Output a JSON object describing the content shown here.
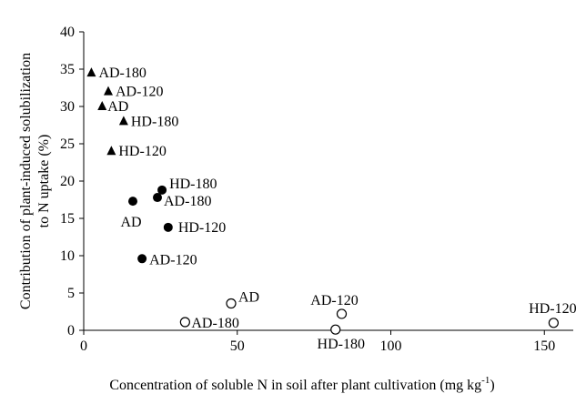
{
  "chart_data": {
    "type": "scatter",
    "title": "",
    "xlabel": "Concentration of soluble N in soil after plant cultivation (mg kg",
    "xlabel_sup": "-1",
    "xlabel_end": ")",
    "ylabel_lines": [
      "Contribution of plant-induced solubilization",
      "to N uptake (%)"
    ],
    "xlim": [
      0,
      160
    ],
    "ylim": [
      0,
      40
    ],
    "xticks": [
      0,
      50,
      100,
      150
    ],
    "yticks": [
      0,
      5,
      10,
      15,
      20,
      25,
      30,
      35,
      40
    ],
    "grid": false,
    "series": [
      {
        "marker": "triangle",
        "points": [
          {
            "x": 2.5,
            "y": 34.5,
            "label": "AD-180"
          },
          {
            "x": 8,
            "y": 32,
            "label": "AD-120"
          },
          {
            "x": 6,
            "y": 30,
            "label": "AD"
          },
          {
            "x": 13,
            "y": 28,
            "label": "HD-180"
          },
          {
            "x": 9,
            "y": 24,
            "label": "HD-120"
          }
        ]
      },
      {
        "marker": "filled-circle",
        "points": [
          {
            "x": 25.5,
            "y": 18.8,
            "label": "HD-180"
          },
          {
            "x": 24,
            "y": 17.8,
            "label": "AD-180"
          },
          {
            "x": 16,
            "y": 17.3,
            "label": "AD"
          },
          {
            "x": 27.5,
            "y": 13.8,
            "label": "HD-120"
          },
          {
            "x": 19,
            "y": 9.6,
            "label": "AD-120"
          }
        ]
      },
      {
        "marker": "open-circle",
        "points": [
          {
            "x": 48,
            "y": 3.6,
            "label": "AD"
          },
          {
            "x": 33,
            "y": 1.1,
            "label": "AD-180"
          },
          {
            "x": 84,
            "y": 2.2,
            "label": "AD-120"
          },
          {
            "x": 82,
            "y": 0.1,
            "label": "HD-180"
          },
          {
            "x": 153,
            "y": 1.0,
            "label": "HD-120"
          }
        ]
      }
    ]
  }
}
